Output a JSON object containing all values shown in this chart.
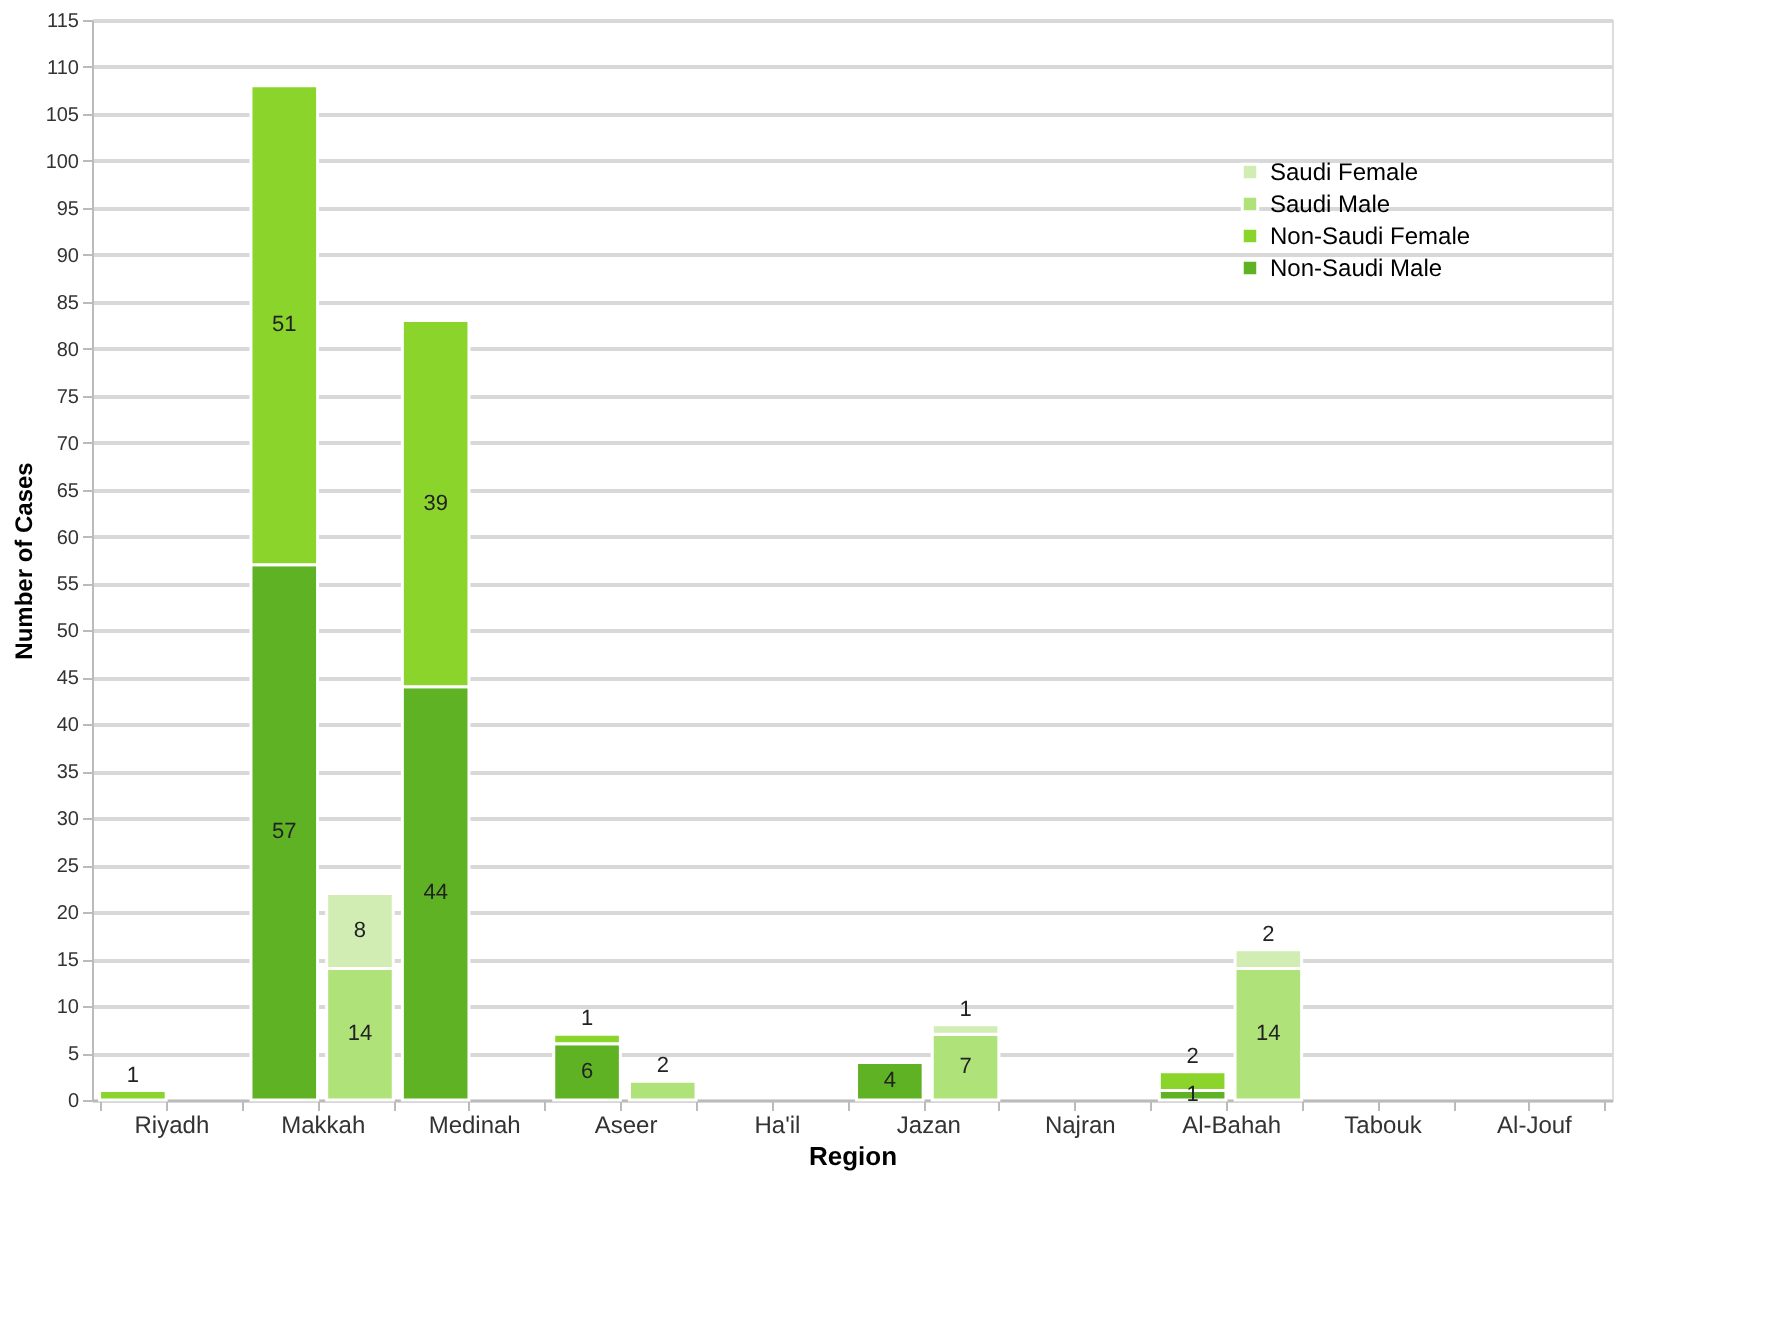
{
  "chart_data": {
    "type": "bar",
    "xlabel": "Region",
    "ylabel": "Number of Cases",
    "categories": [
      "Riyadh",
      null,
      "Makkah",
      null,
      "Medinah",
      null,
      "Aseer",
      null,
      "Ha'il",
      null,
      "Jazan",
      null,
      "Najran",
      null,
      "Al-Bahah",
      null,
      "Tabouk",
      null,
      "Al-Jouf",
      null
    ],
    "stacked": true,
    "series": [
      {
        "name": "Non-Saudi Male",
        "color": "#5fb224",
        "values": [
          null,
          null,
          57,
          null,
          44,
          null,
          6,
          null,
          null,
          null,
          4,
          null,
          null,
          null,
          1,
          null,
          null,
          null,
          null,
          null
        ]
      },
      {
        "name": "Non-Saudi Female",
        "color": "#8ad42c",
        "values": [
          1,
          null,
          51,
          null,
          39,
          null,
          1,
          null,
          null,
          null,
          null,
          null,
          null,
          null,
          2,
          null,
          null,
          null,
          null,
          null
        ]
      },
      {
        "name": "Saudi Male",
        "color": "#b0e27a",
        "values": [
          null,
          null,
          null,
          14,
          null,
          null,
          null,
          2,
          null,
          null,
          null,
          7,
          null,
          null,
          null,
          14,
          null,
          null,
          null,
          null
        ]
      },
      {
        "name": "Saudi Female",
        "color": "#d2edb4",
        "values": [
          null,
          null,
          null,
          8,
          null,
          null,
          null,
          null,
          null,
          null,
          null,
          1,
          null,
          null,
          null,
          2,
          null,
          null,
          null,
          null
        ]
      }
    ],
    "ylim": [
      0,
      115
    ],
    "yticks": [
      0,
      5,
      10,
      15,
      20,
      25,
      30,
      35,
      40,
      45,
      50,
      55,
      60,
      65,
      70,
      75,
      80,
      85,
      90,
      95,
      100,
      105,
      110,
      115
    ],
    "grid": "y",
    "legend": "top right",
    "data_labels": true
  }
}
